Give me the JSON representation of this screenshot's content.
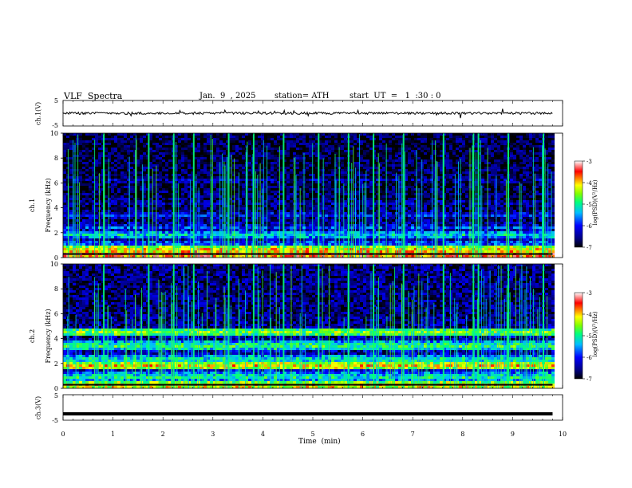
{
  "header": {
    "title": "VLF  Spectra",
    "date": "Jan.  9  , 2025",
    "station": "station= ATH",
    "start_ut": "start  UT  =   1  :30 : 0"
  },
  "panels": {
    "ch1_voltage": {
      "ylabel": "ch.1(V)",
      "yticks": [
        "5",
        "-5"
      ]
    },
    "ch1_spectrogram": {
      "ylabel_line1": "ch.1",
      "ylabel_line2": "Frequency (kHz)",
      "yticks": [
        "0",
        "2",
        "4",
        "6",
        "8",
        "10"
      ]
    },
    "ch2_spectrogram": {
      "ylabel_line1": "ch.2",
      "ylabel_line2": "Frequency (kHz)",
      "yticks": [
        "0",
        "2",
        "4",
        "6",
        "8",
        "10"
      ]
    },
    "ch3_voltage": {
      "ylabel": "ch.3(V)",
      "yticks": [
        "5",
        "-5"
      ]
    }
  },
  "colorbar": {
    "label": "log(PSD)(V²/Hz)",
    "ticks": [
      "-3",
      "-4",
      "-5",
      "-6",
      "-7"
    ],
    "colors": [
      "#000080",
      "#0000ff",
      "#00bfff",
      "#00ff80",
      "#80ff00",
      "#ffff00",
      "#ff8000",
      "#ff0000",
      "#ffffff"
    ]
  },
  "xaxis": {
    "label": "Time  (min)",
    "ticks": [
      "0",
      "1",
      "2",
      "3",
      "4",
      "5",
      "6",
      "7",
      "8",
      "9",
      "10"
    ]
  },
  "chart_data": {
    "type": "heatmap",
    "title": "VLF  Spectra",
    "xlabel": "Time  (min)",
    "xlim": [
      0,
      10
    ],
    "data_end_min": 9.8,
    "subplots": [
      {
        "name": "ch.1(V)",
        "kind": "line",
        "ylim": [
          -5,
          5
        ],
        "baseline": 0
      },
      {
        "name": "ch.1",
        "kind": "spectrogram",
        "ylabel": "Frequency (kHz)",
        "ylim": [
          0,
          10
        ],
        "background_logpsd": -6.8,
        "bands_khz": [
          {
            "f": 0.3,
            "logpsd": -3.5
          },
          {
            "f": 0.7,
            "logpsd": -4.0
          },
          {
            "f": 1.2,
            "logpsd": -5.7
          },
          {
            "f": 1.9,
            "logpsd": -5.2
          },
          {
            "f": 2.5,
            "logpsd": -5.9
          },
          {
            "f": 3.5,
            "logpsd": -6.0
          },
          {
            "f": 4.5,
            "logpsd": -6.3
          },
          {
            "f": 6.3,
            "logpsd": -6.3
          }
        ],
        "bursts_min": [
          0.8,
          1.7,
          2.2,
          2.6,
          3.3,
          3.8,
          4.4,
          5.1,
          5.7,
          6.2,
          6.8,
          7.6,
          8.2,
          8.3,
          8.9,
          9.6
        ]
      },
      {
        "name": "ch.2",
        "kind": "spectrogram",
        "ylabel": "Frequency (kHz)",
        "ylim": [
          0,
          10
        ],
        "background_logpsd": -6.6,
        "bands_khz": [
          {
            "f": 0.3,
            "logpsd": -4.0
          },
          {
            "f": 1.0,
            "logpsd": -5.0
          },
          {
            "f": 1.9,
            "logpsd": -4.0
          },
          {
            "f": 2.4,
            "logpsd": -5.0
          },
          {
            "f": 3.5,
            "logpsd": -4.8
          },
          {
            "f": 4.6,
            "logpsd": -4.5
          }
        ],
        "bursts_min": [
          0.8,
          1.7,
          2.2,
          2.6,
          3.3,
          3.8,
          4.4,
          5.1,
          5.7,
          6.2,
          6.8,
          7.6,
          8.2,
          8.3,
          8.9,
          9.6
        ]
      },
      {
        "name": "ch.3(V)",
        "kind": "line",
        "ylim": [
          -5,
          5
        ],
        "baseline": -2.5
      }
    ],
    "colorbar_range": [
      -7,
      -3
    ]
  }
}
